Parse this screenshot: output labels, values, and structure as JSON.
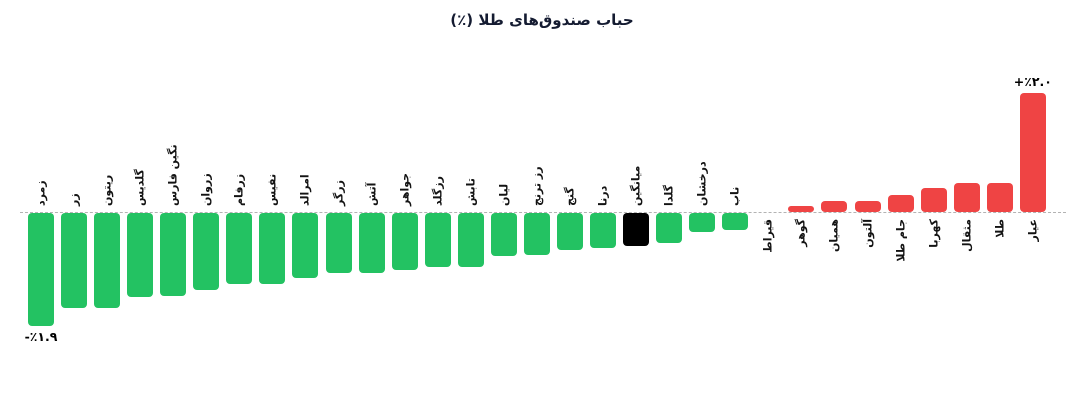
{
  "chart_data": {
    "type": "bar",
    "title": "حباب صندوق‌های طلا (٪)",
    "xlabel": "",
    "ylabel": "",
    "ylim": [
      -2.2,
      2.3
    ],
    "grid": false,
    "legend": "none",
    "orientation": "vertical",
    "baseline": 0,
    "unit": "%",
    "label_rotation": 90,
    "colors": {
      "negative": "#23c262",
      "positive": "#ef4444",
      "mean": "#000000"
    },
    "points": [
      {
        "label": "زمرد",
        "value": -1.9,
        "role": "fund",
        "annotation": "-٪۱.۹"
      },
      {
        "label": "زر",
        "value": -1.6,
        "role": "fund"
      },
      {
        "label": "ریتون",
        "value": -1.6,
        "role": "fund"
      },
      {
        "label": "گلدیس",
        "value": -1.42,
        "role": "fund"
      },
      {
        "label": "نگین فارس",
        "value": -1.4,
        "role": "fund"
      },
      {
        "label": "زروان",
        "value": -1.3,
        "role": "fund"
      },
      {
        "label": "زرفام",
        "value": -1.2,
        "role": "fund"
      },
      {
        "label": "نفیس",
        "value": -1.2,
        "role": "fund"
      },
      {
        "label": "امرالد",
        "value": -1.1,
        "role": "fund"
      },
      {
        "label": "زرگر",
        "value": -1.0,
        "role": "fund"
      },
      {
        "label": "آتش",
        "value": -1.0,
        "role": "fund"
      },
      {
        "label": "جواهر",
        "value": -0.95,
        "role": "fund"
      },
      {
        "label": "رزگلد",
        "value": -0.9,
        "role": "fund"
      },
      {
        "label": "تابش",
        "value": -0.9,
        "role": "fund"
      },
      {
        "label": "لیان",
        "value": -0.72,
        "role": "fund"
      },
      {
        "label": "رز ترنج",
        "value": -0.7,
        "role": "fund"
      },
      {
        "label": "گنج",
        "value": -0.62,
        "role": "fund"
      },
      {
        "label": "درنا",
        "value": -0.58,
        "role": "fund"
      },
      {
        "label": "میانگین",
        "value": -0.55,
        "role": "mean"
      },
      {
        "label": "گلدا",
        "value": -0.5,
        "role": "fund"
      },
      {
        "label": "درخشان",
        "value": -0.32,
        "role": "fund"
      },
      {
        "label": "ناب",
        "value": -0.28,
        "role": "fund"
      },
      {
        "label": "قیراط",
        "value": 0.0,
        "role": "fund"
      },
      {
        "label": "گوهر",
        "value": 0.1,
        "role": "fund"
      },
      {
        "label": "همیان",
        "value": 0.18,
        "role": "fund"
      },
      {
        "label": "آلتون",
        "value": 0.18,
        "role": "fund"
      },
      {
        "label": "جام طلا",
        "value": 0.28,
        "role": "fund"
      },
      {
        "label": "کهربا",
        "value": 0.4,
        "role": "fund"
      },
      {
        "label": "مثقال",
        "value": 0.48,
        "role": "fund"
      },
      {
        "label": "طلا",
        "value": 0.48,
        "role": "fund"
      },
      {
        "label": "عیار",
        "value": 2.0,
        "role": "fund",
        "annotation": "+٪۲.۰"
      }
    ]
  }
}
